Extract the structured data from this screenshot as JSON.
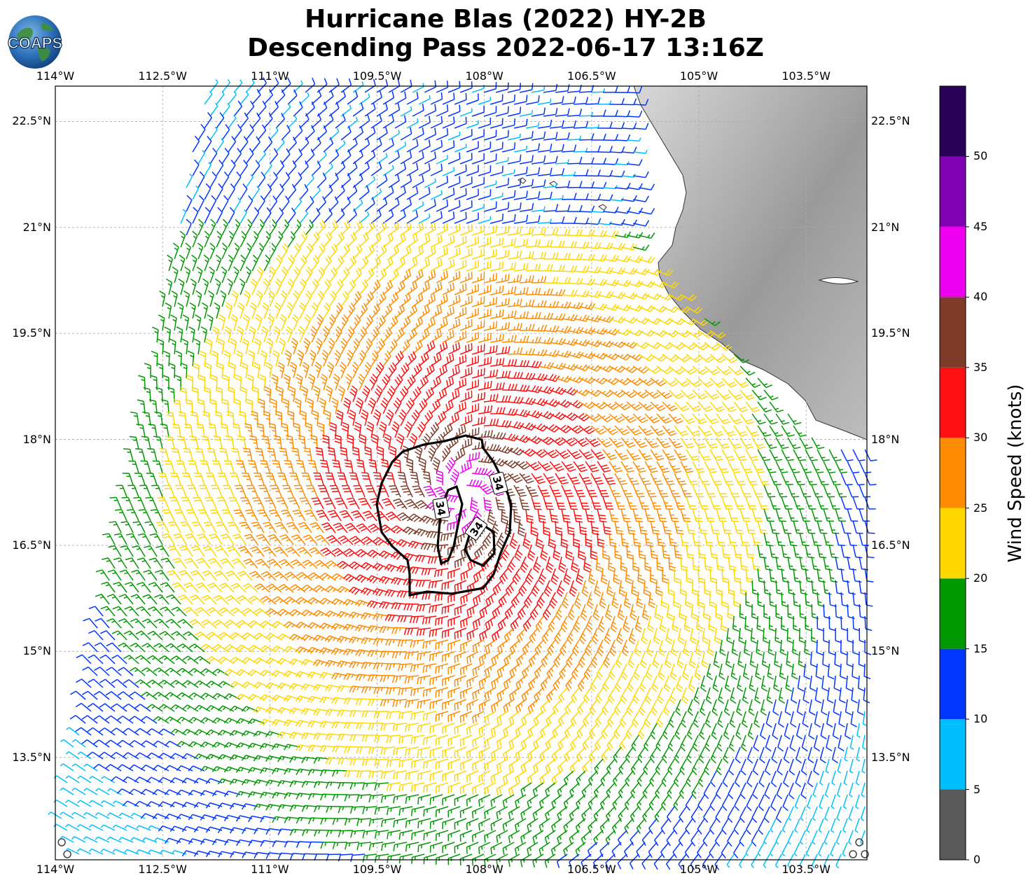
{
  "title_line1": "Hurricane Blas (2022) HY-2B",
  "title_line2": "Descending Pass 2022-06-17 13:16Z",
  "logo_text": "COAPS",
  "lon_ticks": [
    {
      "lon": -114,
      "label": "114°W"
    },
    {
      "lon": -112.5,
      "label": "112.5°W"
    },
    {
      "lon": -111,
      "label": "111°W"
    },
    {
      "lon": -109.5,
      "label": "109.5°W"
    },
    {
      "lon": -108,
      "label": "108°W"
    },
    {
      "lon": -106.5,
      "label": "106.5°W"
    },
    {
      "lon": -105,
      "label": "105°W"
    },
    {
      "lon": -103.5,
      "label": "103.5°W"
    }
  ],
  "lat_ticks": [
    {
      "lat": 22.5,
      "label": "22.5°N"
    },
    {
      "lat": 21,
      "label": "21°N"
    },
    {
      "lat": 19.5,
      "label": "19.5°N"
    },
    {
      "lat": 18,
      "label": "18°N"
    },
    {
      "lat": 16.5,
      "label": "16.5°N"
    },
    {
      "lat": 15,
      "label": "15°N"
    },
    {
      "lat": 13.5,
      "label": "13.5°N"
    }
  ],
  "map_extent": {
    "lon_min": -114,
    "lon_max": -102.65,
    "lat_min": 12.05,
    "lat_max": 23.0
  },
  "storm_center": {
    "lon": -108.3,
    "lat": 17.25
  },
  "contour_label": "34",
  "contour_labels": [
    "34",
    "34",
    "34"
  ],
  "colorbar": {
    "label": "Wind Speed (knots)",
    "tick_labels": [
      "0",
      "5",
      "10",
      "15",
      "20",
      "25",
      "30",
      "35",
      "40",
      "45",
      "50"
    ],
    "bins": [
      {
        "min": 0,
        "max": 5,
        "color": "#595959"
      },
      {
        "min": 5,
        "max": 10,
        "color": "#00bfff"
      },
      {
        "min": 10,
        "max": 15,
        "color": "#0036ff"
      },
      {
        "min": 15,
        "max": 20,
        "color": "#009900"
      },
      {
        "min": 20,
        "max": 25,
        "color": "#ffd700"
      },
      {
        "min": 25,
        "max": 30,
        "color": "#ff8c00"
      },
      {
        "min": 30,
        "max": 35,
        "color": "#ff0f0f"
      },
      {
        "min": 35,
        "max": 40,
        "color": "#7f3b2a"
      },
      {
        "min": 40,
        "max": 45,
        "color": "#f000f0"
      },
      {
        "min": 45,
        "max": 50,
        "color": "#8000b3"
      },
      {
        "min": 50,
        "max": 55,
        "color": "#2b0057"
      }
    ]
  }
}
